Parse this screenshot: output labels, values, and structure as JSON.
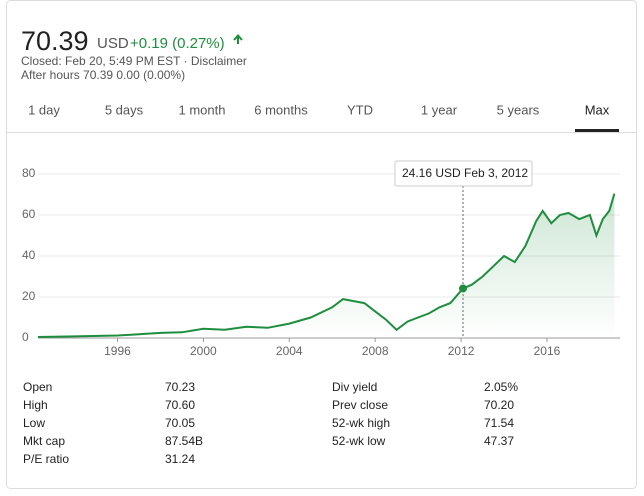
{
  "header": {
    "price": "70.39",
    "currency": "USD",
    "change": "+0.19 (0.27%)",
    "closed": "Closed: Feb 20, 5:49 PM EST ·",
    "disclaimer": "Disclaimer",
    "after_hours": "After hours 70.39 0.00 (0.00%)"
  },
  "tabs": {
    "items": [
      "1 day",
      "5 days",
      "1 month",
      "6 months",
      "YTD",
      "1 year",
      "5 years",
      "Max"
    ],
    "selected": 7
  },
  "chart": {
    "type": "line",
    "color": "#1e8e3e",
    "x": [
      1992.3,
      1994,
      1996,
      1997,
      1998,
      1999,
      2000,
      2001,
      2002,
      2003,
      2004,
      2005,
      2006,
      2006.5,
      2007,
      2007.5,
      2008,
      2008.5,
      2009,
      2009.5,
      2010,
      2010.5,
      2011,
      2011.5,
      2012.09,
      2012.5,
      2013,
      2013.5,
      2014,
      2014.5,
      2015,
      2015.5,
      2015.8,
      2016.2,
      2016.6,
      2017,
      2017.5,
      2018,
      2018.3,
      2018.6,
      2018.9,
      2019.14
    ],
    "values": [
      0.5,
      0.8,
      1.2,
      1.8,
      2.5,
      2.8,
      4.5,
      4,
      5.5,
      5,
      7,
      10,
      15,
      19,
      18,
      17,
      13,
      9,
      4,
      8,
      10,
      12,
      15,
      17,
      24.16,
      26,
      30,
      35,
      40,
      37,
      45,
      57,
      62,
      56,
      60,
      61,
      58,
      60,
      50,
      58,
      62,
      70.39
    ],
    "xlim": [
      1992.3,
      2019.4
    ],
    "ylim": [
      0,
      80
    ],
    "xticks": [
      1996,
      2000,
      2004,
      2008,
      2012,
      2016
    ],
    "yticks": [
      0,
      20,
      40,
      60,
      80
    ],
    "grid": true,
    "hover": {
      "label": "24.16 USD",
      "date": "Feb 3, 2012",
      "x": 2012.09,
      "value": 24.16
    }
  },
  "stats": {
    "left": [
      [
        "Open",
        "70.23"
      ],
      [
        "High",
        "70.60"
      ],
      [
        "Low",
        "70.05"
      ],
      [
        "Mkt cap",
        "87.54B"
      ],
      [
        "P/E ratio",
        "31.24"
      ]
    ],
    "right": [
      [
        "Div yield",
        "2.05%"
      ],
      [
        "Prev close",
        "70.20"
      ],
      [
        "52-wk high",
        "71.54"
      ],
      [
        "52-wk low",
        "47.37"
      ]
    ]
  }
}
